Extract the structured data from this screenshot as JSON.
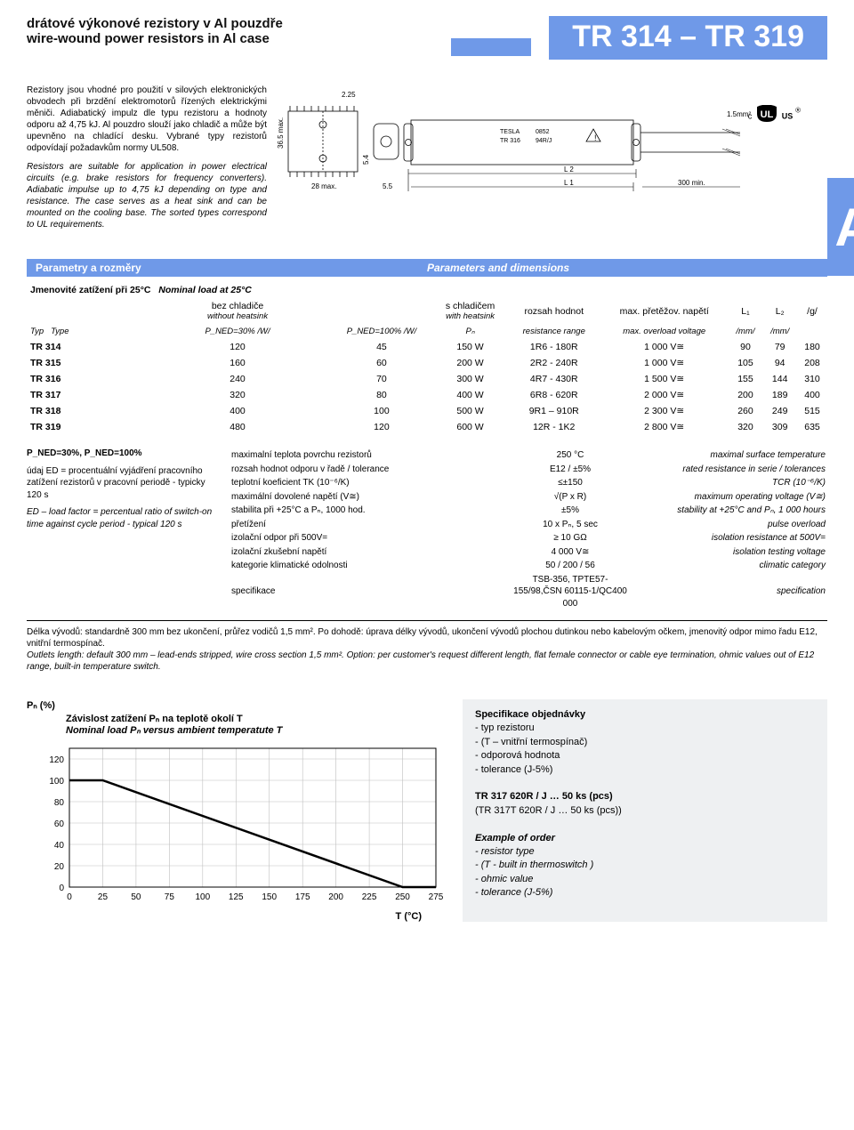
{
  "header": {
    "title_cz": "drátové výkonové rezistory v Al pouzdře",
    "title_en": "wire-wound power resistors in Al case",
    "part_number": "TR 314 – TR 319"
  },
  "description": {
    "cz": "Rezistory jsou vhodné pro použití v silových elektronických obvodech při brzdění elektromotorů řízených elektrickými měniči. Adiabatický impulz dle typu rezistoru a hodnoty odporu až 4,75 kJ. Al pouzdro slouží jako chladič a může být upevněno na chladící desku. Vybrané typy rezistorů odpovídají požadavkům normy UL508.",
    "en": "Resistors are suitable for application in power electrical circuits (e.g. brake resistors for frequency converters). Adiabatic impulse up to 4,75 kJ depending on type and resistance. The case serves as a heat sink and can be mounted on the cooling base. The sorted types correspond to UL requirements."
  },
  "drawing": {
    "dim_225": "2.25",
    "dim_365": "36.5 max.",
    "dim_54": "5.4",
    "dim_28": "28 max.",
    "dim_55": "5.5",
    "lead_15mm2": "1.5mm²",
    "tesla": "TESLA",
    "code": "0852",
    "type": "TR 316",
    "ohm": "94R/J",
    "L1": "L 1",
    "L2": "L 2",
    "lead_300": "300 min.",
    "big_a": "A",
    "ul_c": "c",
    "ul_us": "US",
    "ul_r": "®"
  },
  "section_header": {
    "left": "Parametry a rozměry",
    "right": "Parameters and dimensions"
  },
  "table": {
    "h_nom_cz": "Jmenovité zatížení při 25°C",
    "h_nom_en": "Nominal load  at 25°C",
    "h_wo_cz": "bez chladiče",
    "h_wo_en": "without heatsink",
    "h_w_cz": "s chladičem",
    "h_w_en": "with heatsink",
    "h_range_cz": "rozsah hodnot",
    "h_range_en": "resistance range",
    "h_volt_cz": "max. přetěžov. napětí",
    "h_volt_en": "max. overload voltage",
    "h_L1": "L₁",
    "h_L2": "L₂",
    "h_g": "/g/",
    "h_typ": "Typ",
    "h_type": "Type",
    "h_p30": "P_NED=30% /W/",
    "h_p100": "P_NED=100% /W/",
    "h_pn": "Pₙ",
    "h_mm": "/mm/",
    "rows": [
      {
        "type": "TR 314",
        "p30": "120",
        "p100": "45",
        "pn": "150 W",
        "range": "1R6 - 180R",
        "volt": "1 000 V≅",
        "l1": "90",
        "l2": "79",
        "g": "180"
      },
      {
        "type": "TR 315",
        "p30": "160",
        "p100": "60",
        "pn": "200 W",
        "range": "2R2 - 240R",
        "volt": "1 000 V≅",
        "l1": "105",
        "l2": "94",
        "g": "208"
      },
      {
        "type": "TR 316",
        "p30": "240",
        "p100": "70",
        "pn": "300 W",
        "range": "4R7 - 430R",
        "volt": "1 500 V≅",
        "l1": "155",
        "l2": "144",
        "g": "310"
      },
      {
        "type": "TR 317",
        "p30": "320",
        "p100": "80",
        "pn": "400 W",
        "range": "6R8 - 620R",
        "volt": "2 000 V≅",
        "l1": "200",
        "l2": "189",
        "g": "400"
      },
      {
        "type": "TR 318",
        "p30": "400",
        "p100": "100",
        "pn": "500 W",
        "range": "9R1 – 910R",
        "volt": "2 300 V≅",
        "l1": "260",
        "l2": "249",
        "g": "515"
      },
      {
        "type": "TR 319",
        "p30": "480",
        "p100": "120",
        "pn": "600 W",
        "range": "12R - 1K2",
        "volt": "2 800 V≅",
        "l1": "320",
        "l2": "309",
        "g": "635"
      }
    ]
  },
  "specs_left": {
    "pned": "P_NED=30%, P_NED=100%",
    "cz": "údaj ED = procentuální vyjádření pracovního zatížení rezistorů v pracovní periodě - typicky 120 s",
    "en": "ED – load factor = percentual ratio of switch-on time against cycle period - typical 120 s"
  },
  "specs_mid": [
    {
      "cz": "maximalní teplota povrchu rezistorů",
      "v": "250 °C",
      "en": "maximal surface temperature"
    },
    {
      "cz": "rozsah hodnot odporu v řadě / tolerance",
      "v": "E12 / ±5%",
      "en": "rated resistance in serie / tolerances"
    },
    {
      "cz": "teplotní koeficient TK (10⁻⁶/K)",
      "v": "≤±150",
      "en": "TCR (10⁻⁶/K)"
    },
    {
      "cz": "maximální dovolené napětí (V≅)",
      "v": "√(P x R)",
      "en": "maximum operating voltage (V≅)"
    },
    {
      "cz": "stabilita při +25°C a Pₙ, 1000 hod.",
      "v": "±5%",
      "en": "stability at +25°C and Pₙ, 1 000 hours"
    },
    {
      "cz": "přetížení",
      "v": "10 x Pₙ, 5 sec",
      "en": "pulse overload"
    },
    {
      "cz": "izolační odpor při 500V=",
      "v": "≥ 10 GΩ",
      "en": "isolation resistance at 500V="
    },
    {
      "cz": "izolační zkušební napětí",
      "v": "4 000 V≅",
      "en": "isolation testing voltage"
    },
    {
      "cz": "kategorie klimatické odolnosti",
      "v": "50 / 200 / 56",
      "en": "climatic category"
    },
    {
      "cz": "specifikace",
      "v": "TSB-356, TPTE57-155/98,ČSN 60115-1/QC400 000",
      "en": "specification"
    }
  ],
  "outlets": {
    "cz": "Délka vývodů: standardně 300 mm bez ukončení, průřez vodičů 1,5 mm². Po dohodě: úprava délky vývodů, ukončení vývodů plochou dutinkou nebo kabelovým očkem, jmenovitý odpor mimo řadu E12, vnitřní termospínač.",
    "en": "Outlets length: default 300 mm – lead-ends stripped, wire cross section 1,5 mm². Option: per customer's request different length, flat female connector or cable eye termination, ohmic values out of E12 range, built-in temperature switch."
  },
  "chart": {
    "type": "line",
    "title_cz": "Závislost zatížení Pₙ na teplotě okolí T",
    "title_en": "Nominal load Pₙ versus ambient temperatute T",
    "ylabel": "Pₙ  (%)",
    "xlabel": "T (°C)",
    "xlim": [
      0,
      275
    ],
    "ylim": [
      0,
      130
    ],
    "xticks": [
      0,
      25,
      50,
      75,
      100,
      125,
      150,
      175,
      200,
      225,
      250,
      275
    ],
    "yticks": [
      0,
      20,
      40,
      60,
      80,
      100,
      120
    ],
    "line_color": "#000000",
    "line_width": 2.5,
    "grid_color": "#bfbfbf",
    "background_color": "#ffffff",
    "data": {
      "x": [
        0,
        25,
        250,
        275
      ],
      "y": [
        100,
        100,
        0,
        0
      ]
    }
  },
  "order": {
    "head_cz": "Specifikace objednávky",
    "items_cz": [
      "- typ rezistoru",
      "- (T – vnitřní termospínač)",
      "- odporová hodnota",
      "- tolerance (J-5%)"
    ],
    "example_h": "TR 317  620R / J … 50 ks (pcs)",
    "example_sub": "(TR 317T  620R / J … 50 ks (pcs))",
    "head_en": "Example of order",
    "items_en": [
      "- resistor type",
      "- (T - built in thermoswitch )",
      "- ohmic value",
      "- tolerance (J-5%)"
    ]
  }
}
